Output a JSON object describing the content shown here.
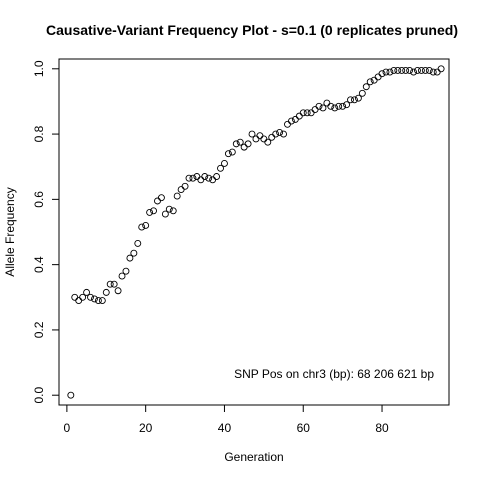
{
  "chart_data": {
    "type": "scatter",
    "title": "Causative-Variant Frequency Plot - s=0.1 (0 replicates pruned)",
    "xlabel": "Generation",
    "ylabel": "Allele Frequency",
    "xlim": [
      -2,
      97
    ],
    "ylim": [
      -0.03,
      1.03
    ],
    "x_ticks": [
      0,
      20,
      40,
      60,
      80
    ],
    "y_ticks": [
      0.0,
      0.2,
      0.4,
      0.6,
      0.8,
      1.0
    ],
    "x_tick_labels": [
      "0",
      "20",
      "40",
      "60",
      "80"
    ],
    "y_tick_labels": [
      "0.0",
      "0.2",
      "0.4",
      "0.6",
      "0.8",
      "1.0"
    ],
    "annotation": "SNP Pos on chr3 (bp): 68 206 621 bp",
    "marker": "open-circle",
    "grid": false,
    "x": [
      1,
      2,
      3,
      4,
      5,
      6,
      7,
      8,
      9,
      10,
      11,
      12,
      13,
      14,
      15,
      16,
      17,
      18,
      19,
      20,
      21,
      22,
      23,
      24,
      25,
      26,
      27,
      28,
      29,
      30,
      31,
      32,
      33,
      34,
      35,
      36,
      37,
      38,
      39,
      40,
      41,
      42,
      43,
      44,
      45,
      46,
      47,
      48,
      49,
      50,
      51,
      52,
      53,
      54,
      55,
      56,
      57,
      58,
      59,
      60,
      61,
      62,
      63,
      64,
      65,
      66,
      67,
      68,
      69,
      70,
      71,
      72,
      73,
      74,
      75,
      76,
      77,
      78,
      79,
      80,
      81,
      82,
      83,
      84,
      85,
      86,
      87,
      88,
      89,
      90,
      91,
      92,
      93,
      94,
      95
    ],
    "y": [
      0.0,
      0.3,
      0.29,
      0.3,
      0.315,
      0.3,
      0.295,
      0.29,
      0.29,
      0.315,
      0.34,
      0.34,
      0.32,
      0.365,
      0.38,
      0.42,
      0.435,
      0.465,
      0.515,
      0.52,
      0.56,
      0.565,
      0.595,
      0.605,
      0.555,
      0.57,
      0.565,
      0.61,
      0.63,
      0.64,
      0.665,
      0.665,
      0.67,
      0.66,
      0.67,
      0.665,
      0.66,
      0.67,
      0.695,
      0.71,
      0.74,
      0.745,
      0.77,
      0.775,
      0.76,
      0.77,
      0.8,
      0.785,
      0.795,
      0.785,
      0.775,
      0.79,
      0.8,
      0.805,
      0.8,
      0.83,
      0.84,
      0.845,
      0.855,
      0.865,
      0.865,
      0.865,
      0.875,
      0.885,
      0.88,
      0.895,
      0.885,
      0.88,
      0.885,
      0.885,
      0.89,
      0.905,
      0.905,
      0.91,
      0.925,
      0.945,
      0.96,
      0.965,
      0.975,
      0.985,
      0.99,
      0.99,
      0.995,
      0.995,
      0.995,
      0.995,
      0.995,
      0.99,
      0.995,
      0.995,
      0.995,
      0.995,
      0.99,
      0.99,
      1.0
    ]
  }
}
